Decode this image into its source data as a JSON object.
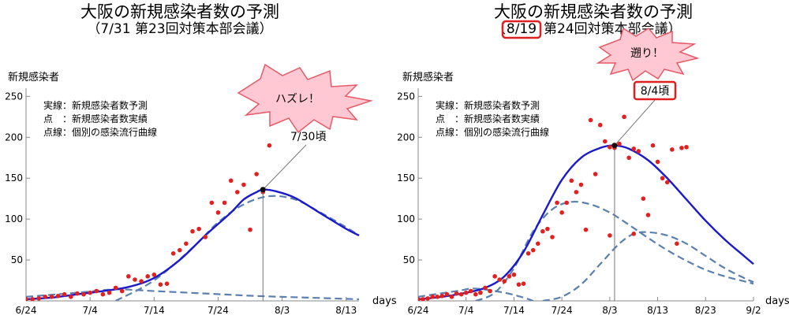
{
  "chart_data": [
    {
      "type": "line",
      "title": "大阪の新規感染者数の予測",
      "subtitle": "（7/31 第23回対策本部会議）",
      "ylabel": "新規感染者",
      "xlabel": "days",
      "ylim": [
        0,
        260
      ],
      "xlim": [
        0,
        52
      ],
      "x_ticks": [
        {
          "day": 0,
          "label": "6/24"
        },
        {
          "day": 10,
          "label": "7/4"
        },
        {
          "day": 20,
          "label": "7/14"
        },
        {
          "day": 30,
          "label": "7/24"
        },
        {
          "day": 40,
          "label": "8/3"
        },
        {
          "day": 50,
          "label": "8/13"
        }
      ],
      "y_ticks": [
        50,
        100,
        150,
        200,
        250
      ],
      "legend": [
        "実線：新規感染者数予測",
        "点　：新規感染者数実績",
        "点線：個別の感染流行曲線"
      ],
      "peak_label": "7/30頃",
      "peak": {
        "x": 37,
        "y": 136
      },
      "callout": "ハズレ！",
      "series": [
        {
          "style": "solid",
          "values": [
            [
              0,
              2
            ],
            [
              4,
              4
            ],
            [
              8,
              8
            ],
            [
              12,
              12
            ],
            [
              16,
              17
            ],
            [
              20,
              28
            ],
            [
              24,
              50
            ],
            [
              28,
              80
            ],
            [
              32,
              108
            ],
            [
              34,
              124
            ],
            [
              36,
              133
            ],
            [
              37,
              136
            ],
            [
              39,
              134
            ],
            [
              42,
              126
            ],
            [
              46,
              107
            ],
            [
              50,
              88
            ],
            [
              52,
              80
            ]
          ]
        },
        {
          "style": "dashed",
          "values": [
            [
              0,
              5
            ],
            [
              8,
              10
            ],
            [
              14,
              14
            ],
            [
              20,
              12
            ],
            [
              28,
              9
            ],
            [
              36,
              6
            ],
            [
              44,
              4
            ],
            [
              52,
              2
            ]
          ]
        },
        {
          "style": "dashed",
          "values": [
            [
              14,
              0
            ],
            [
              20,
              25
            ],
            [
              26,
              65
            ],
            [
              30,
              96
            ],
            [
              34,
              118
            ],
            [
              38,
              128
            ],
            [
              42,
              124
            ],
            [
              46,
              108
            ],
            [
              50,
              90
            ],
            [
              52,
              80
            ]
          ]
        }
      ],
      "points": [
        [
          0,
          2
        ],
        [
          1,
          2
        ],
        [
          2,
          3
        ],
        [
          3,
          5
        ],
        [
          4,
          5
        ],
        [
          5,
          6
        ],
        [
          6,
          8
        ],
        [
          7,
          5
        ],
        [
          8,
          9
        ],
        [
          9,
          8
        ],
        [
          10,
          10
        ],
        [
          11,
          12
        ],
        [
          12,
          8
        ],
        [
          13,
          10
        ],
        [
          14,
          16
        ],
        [
          15,
          12
        ],
        [
          16,
          30
        ],
        [
          17,
          26
        ],
        [
          18,
          24
        ],
        [
          19,
          30
        ],
        [
          20,
          32
        ],
        [
          21,
          20
        ],
        [
          22,
          21
        ],
        [
          23,
          58
        ],
        [
          24,
          62
        ],
        [
          25,
          70
        ],
        [
          26,
          85
        ],
        [
          27,
          88
        ],
        [
          28,
          78
        ],
        [
          29,
          120
        ],
        [
          30,
          108
        ],
        [
          31,
          120
        ],
        [
          32,
          147
        ],
        [
          33,
          133
        ],
        [
          34,
          142
        ],
        [
          35,
          87
        ],
        [
          36,
          155
        ],
        [
          37,
          133
        ],
        [
          38,
          190
        ],
        [
          39,
          220
        ]
      ]
    },
    {
      "type": "line",
      "title": "大阪の新規感染者数の予測",
      "subtitle_prefix": "（",
      "subtitle_date": "8/19",
      "subtitle_suffix": "第24回対策本部会議）",
      "ylabel": "新規感染者",
      "xlabel": "days",
      "ylim": [
        0,
        260
      ],
      "xlim": [
        0,
        70
      ],
      "x_ticks": [
        {
          "day": 0,
          "label": "6/24"
        },
        {
          "day": 10,
          "label": "7/4"
        },
        {
          "day": 20,
          "label": "7/14"
        },
        {
          "day": 30,
          "label": "7/24"
        },
        {
          "day": 40,
          "label": "8/3"
        },
        {
          "day": 50,
          "label": "8/13"
        },
        {
          "day": 60,
          "label": "8/23"
        },
        {
          "day": 70,
          "label": "9/2"
        }
      ],
      "y_ticks": [
        50,
        100,
        150,
        200,
        250
      ],
      "legend": [
        "実線：新規感染者数予測",
        "点　：新規感染者数実績",
        "点線：個別の感染流行曲線"
      ],
      "peak_label": "8/4頃",
      "peak": {
        "x": 41,
        "y": 190
      },
      "callout": "遡り！",
      "series": [
        {
          "style": "solid",
          "values": [
            [
              0,
              2
            ],
            [
              5,
              5
            ],
            [
              10,
              10
            ],
            [
              14,
              16
            ],
            [
              18,
              30
            ],
            [
              22,
              60
            ],
            [
              26,
              105
            ],
            [
              30,
              148
            ],
            [
              34,
              175
            ],
            [
              38,
              187
            ],
            [
              41,
              190
            ],
            [
              44,
              186
            ],
            [
              48,
              172
            ],
            [
              52,
              150
            ],
            [
              56,
              124
            ],
            [
              60,
              98
            ],
            [
              64,
              75
            ],
            [
              68,
              55
            ],
            [
              70,
              45
            ]
          ]
        },
        {
          "style": "dashed",
          "values": [
            [
              0,
              5
            ],
            [
              8,
              12
            ],
            [
              12,
              15
            ],
            [
              18,
              10
            ],
            [
              22,
              4
            ],
            [
              24,
              0
            ]
          ]
        },
        {
          "style": "dashed",
          "values": [
            [
              12,
              0
            ],
            [
              16,
              10
            ],
            [
              20,
              40
            ],
            [
              24,
              85
            ],
            [
              28,
              112
            ],
            [
              32,
              121
            ],
            [
              36,
              118
            ],
            [
              40,
              108
            ],
            [
              44,
              93
            ],
            [
              48,
              77
            ],
            [
              52,
              62
            ],
            [
              56,
              49
            ],
            [
              60,
              38
            ],
            [
              64,
              30
            ],
            [
              68,
              24
            ],
            [
              70,
              21
            ]
          ]
        },
        {
          "style": "dashed",
          "values": [
            [
              26,
              0
            ],
            [
              30,
              5
            ],
            [
              34,
              20
            ],
            [
              38,
              45
            ],
            [
              42,
              70
            ],
            [
              45,
              82
            ],
            [
              48,
              84
            ],
            [
              52,
              80
            ],
            [
              56,
              70
            ],
            [
              60,
              55
            ],
            [
              64,
              40
            ],
            [
              68,
              28
            ],
            [
              70,
              23
            ]
          ]
        }
      ],
      "points": [
        [
          0,
          2
        ],
        [
          1,
          2
        ],
        [
          2,
          3
        ],
        [
          3,
          5
        ],
        [
          4,
          5
        ],
        [
          5,
          6
        ],
        [
          6,
          8
        ],
        [
          7,
          5
        ],
        [
          8,
          9
        ],
        [
          9,
          8
        ],
        [
          10,
          10
        ],
        [
          11,
          12
        ],
        [
          12,
          8
        ],
        [
          13,
          10
        ],
        [
          14,
          16
        ],
        [
          15,
          12
        ],
        [
          16,
          30
        ],
        [
          17,
          26
        ],
        [
          18,
          24
        ],
        [
          19,
          30
        ],
        [
          20,
          32
        ],
        [
          21,
          20
        ],
        [
          22,
          21
        ],
        [
          23,
          58
        ],
        [
          24,
          62
        ],
        [
          25,
          70
        ],
        [
          26,
          85
        ],
        [
          27,
          88
        ],
        [
          28,
          78
        ],
        [
          29,
          120
        ],
        [
          30,
          108
        ],
        [
          31,
          120
        ],
        [
          32,
          147
        ],
        [
          33,
          133
        ],
        [
          34,
          142
        ],
        [
          35,
          87
        ],
        [
          36,
          221
        ],
        [
          37,
          155
        ],
        [
          38,
          215
        ],
        [
          39,
          195
        ],
        [
          40,
          188
        ],
        [
          41,
          187
        ],
        [
          42,
          192
        ],
        [
          43,
          225
        ],
        [
          44,
          175
        ],
        [
          45,
          186
        ],
        [
          46,
          183
        ],
        [
          47,
          125
        ],
        [
          48,
          105
        ],
        [
          49,
          190
        ],
        [
          50,
          170
        ],
        [
          51,
          150
        ],
        [
          52,
          145
        ],
        [
          53,
          185
        ],
        [
          54,
          70
        ],
        [
          55,
          187
        ],
        [
          56,
          188
        ],
        [
          45,
          82
        ],
        [
          40,
          80
        ]
      ]
    }
  ]
}
